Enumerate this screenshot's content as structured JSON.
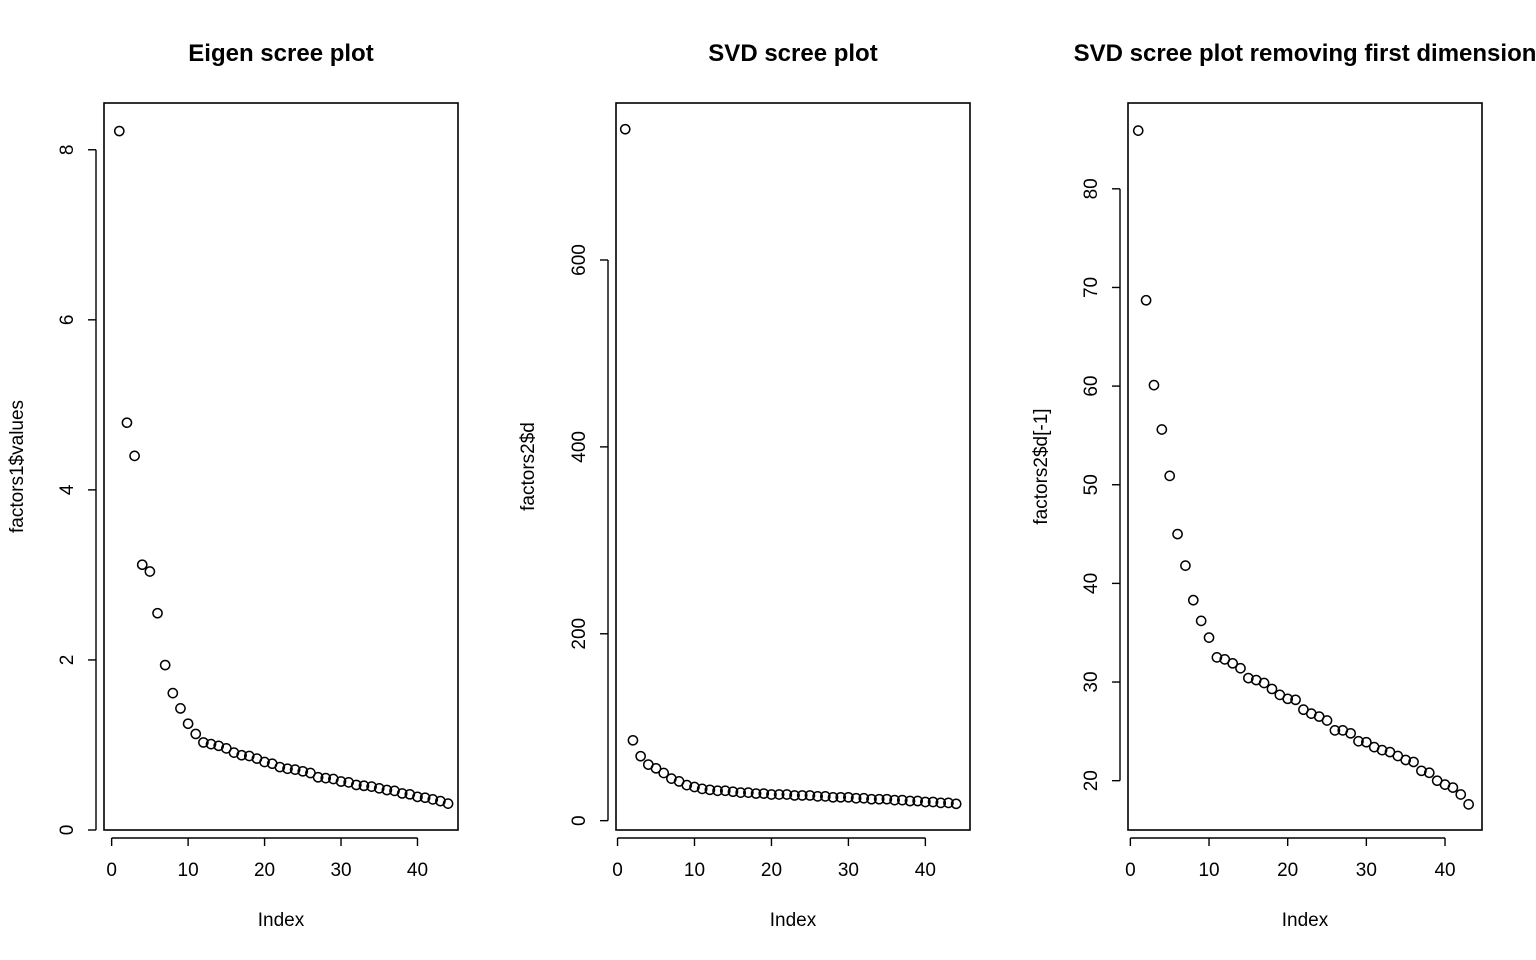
{
  "chart_data": [
    {
      "type": "scatter",
      "title": "Eigen scree plot",
      "xlabel": "Index",
      "ylabel": "factors1$values",
      "xlim": [
        -1.0,
        45.3
      ],
      "ylim": [
        0,
        8.55
      ],
      "xticks": [
        0,
        10,
        20,
        30,
        40
      ],
      "yticks": [
        0,
        2,
        4,
        6,
        8
      ],
      "x": [
        1,
        2,
        3,
        4,
        5,
        6,
        7,
        8,
        9,
        10,
        11,
        12,
        13,
        14,
        15,
        16,
        17,
        18,
        19,
        20,
        21,
        22,
        23,
        24,
        25,
        26,
        27,
        28,
        29,
        30,
        31,
        32,
        33,
        34,
        35,
        36,
        37,
        38,
        39,
        40,
        41,
        42,
        43,
        44
      ],
      "y": [
        8.22,
        4.79,
        4.4,
        3.12,
        3.04,
        2.55,
        1.94,
        1.61,
        1.43,
        1.25,
        1.13,
        1.03,
        1.01,
        0.99,
        0.96,
        0.91,
        0.88,
        0.87,
        0.84,
        0.8,
        0.78,
        0.74,
        0.72,
        0.71,
        0.69,
        0.67,
        0.62,
        0.61,
        0.6,
        0.57,
        0.56,
        0.53,
        0.52,
        0.51,
        0.49,
        0.47,
        0.46,
        0.43,
        0.42,
        0.39,
        0.38,
        0.36,
        0.34,
        0.31
      ]
    },
    {
      "type": "scatter",
      "title": "SVD scree plot",
      "xlabel": "Index",
      "ylabel": "factors2$d",
      "xlim": [
        -0.2,
        45.8
      ],
      "ylim": [
        -10,
        768
      ],
      "xticks": [
        0,
        10,
        20,
        30,
        40
      ],
      "yticks": [
        0,
        200,
        400,
        600
      ],
      "x": [
        1,
        2,
        3,
        4,
        5,
        6,
        7,
        8,
        9,
        10,
        11,
        12,
        13,
        14,
        15,
        16,
        17,
        18,
        19,
        20,
        21,
        22,
        23,
        24,
        25,
        26,
        27,
        28,
        29,
        30,
        31,
        32,
        33,
        34,
        35,
        36,
        37,
        38,
        39,
        40,
        41,
        42,
        43,
        44
      ],
      "y": [
        740,
        86,
        69,
        60,
        56,
        51,
        45,
        42,
        38,
        36,
        34,
        33,
        32,
        32,
        31,
        30,
        30,
        29,
        29,
        28,
        28,
        28,
        27,
        27,
        27,
        26,
        26,
        25,
        25,
        25,
        24,
        24,
        23,
        23,
        23,
        22,
        22,
        21,
        21,
        20,
        20,
        19,
        19,
        18
      ]
    },
    {
      "type": "scatter",
      "title": "SVD scree plot removing first dimension",
      "xlabel": "Index",
      "ylabel": "factors2$d[-1]",
      "xlim": [
        -0.3,
        44.7
      ],
      "ylim": [
        15,
        88.7
      ],
      "xticks": [
        0,
        10,
        20,
        30,
        40
      ],
      "yticks": [
        20,
        30,
        40,
        50,
        60,
        70,
        80
      ],
      "x": [
        1,
        2,
        3,
        4,
        5,
        6,
        7,
        8,
        9,
        10,
        11,
        12,
        13,
        14,
        15,
        16,
        17,
        18,
        19,
        20,
        21,
        22,
        23,
        24,
        25,
        26,
        27,
        28,
        29,
        30,
        31,
        32,
        33,
        34,
        35,
        36,
        37,
        38,
        39,
        40,
        41,
        42,
        43
      ],
      "y": [
        85.9,
        68.7,
        60.1,
        55.6,
        50.9,
        45.0,
        41.8,
        38.3,
        36.2,
        34.5,
        32.5,
        32.3,
        31.9,
        31.4,
        30.4,
        30.2,
        29.9,
        29.3,
        28.7,
        28.3,
        28.2,
        27.2,
        26.8,
        26.5,
        26.1,
        25.1,
        25.1,
        24.8,
        24.0,
        23.9,
        23.4,
        23.1,
        22.9,
        22.5,
        22.1,
        21.9,
        21.0,
        20.8,
        20.0,
        19.6,
        19.3,
        18.6,
        17.6
      ]
    }
  ]
}
